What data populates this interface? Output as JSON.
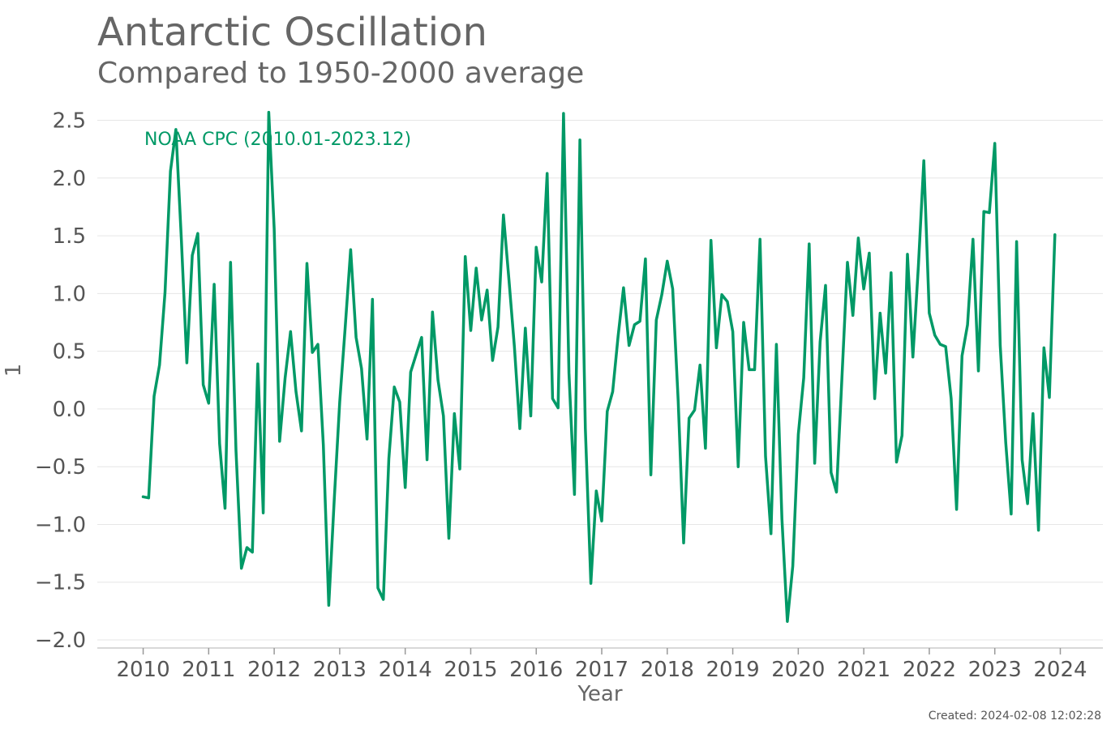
{
  "chart_data": {
    "type": "line",
    "title": "Antarctic Oscillation",
    "subtitle": "Compared to 1950-2000 average",
    "xlabel": "Year",
    "ylabel": "1",
    "xlim": [
      2009.3,
      2024.65
    ],
    "ylim": [
      -2.07,
      2.63
    ],
    "xticks": [
      2010,
      2011,
      2012,
      2013,
      2014,
      2015,
      2016,
      2017,
      2018,
      2019,
      2020,
      2021,
      2022,
      2023,
      2024
    ],
    "yticks": [
      -2.0,
      -1.5,
      -1.0,
      -0.5,
      0.0,
      0.5,
      1.0,
      1.5,
      2.0,
      2.5
    ],
    "ytick_labels": [
      "−2.0",
      "−1.5",
      "−1.0",
      "−0.5",
      "0.0",
      "0.5",
      "1.0",
      "1.5",
      "2.0",
      "2.5"
    ],
    "grid": true,
    "colors": {
      "series": "#009966",
      "grid": "#e6e6e6",
      "axis": "#cccccc"
    },
    "series": [
      {
        "name": "NOAA CPC (2010.01-2023.12)",
        "start": "2010.01",
        "end": "2023.12",
        "values": [
          -0.76,
          -0.77,
          0.11,
          0.38,
          1.01,
          2.06,
          2.42,
          1.46,
          0.4,
          1.33,
          1.52,
          0.21,
          0.05,
          1.08,
          -0.3,
          -0.86,
          1.27,
          -0.36,
          -1.38,
          -1.2,
          -1.24,
          0.39,
          -0.9,
          2.57,
          1.56,
          -0.28,
          0.27,
          0.67,
          0.15,
          -0.19,
          1.26,
          0.49,
          0.56,
          -0.31,
          -1.7,
          -0.78,
          0.06,
          0.7,
          1.38,
          0.62,
          0.35,
          -0.26,
          0.95,
          -1.55,
          -1.65,
          -0.43,
          0.19,
          0.06,
          -0.68,
          0.32,
          0.47,
          0.62,
          -0.44,
          0.84,
          0.25,
          -0.06,
          -1.12,
          -0.04,
          -0.52,
          1.32,
          0.68,
          1.22,
          0.77,
          1.03,
          0.42,
          0.71,
          1.68,
          1.12,
          0.54,
          -0.17,
          0.7,
          -0.06,
          1.4,
          1.1,
          2.04,
          0.09,
          0.01,
          2.56,
          0.31,
          -0.74,
          2.33,
          -0.17,
          -1.51,
          -0.71,
          -0.97,
          -0.02,
          0.15,
          0.63,
          1.05,
          0.55,
          0.73,
          0.76,
          1.3,
          -0.57,
          0.77,
          0.99,
          1.28,
          1.04,
          0.07,
          -1.16,
          -0.08,
          -0.01,
          0.38,
          -0.34,
          1.46,
          0.53,
          0.99,
          0.93,
          0.67,
          -0.5,
          0.75,
          0.34,
          0.34,
          1.47,
          -0.41,
          -1.08,
          0.56,
          -0.95,
          -1.84,
          -1.36,
          -0.22,
          0.27,
          1.43,
          -0.47,
          0.58,
          1.07,
          -0.55,
          -0.72,
          0.27,
          1.27,
          0.81,
          1.48,
          1.04,
          1.35,
          0.09,
          0.83,
          0.31,
          1.18,
          -0.46,
          -0.23,
          1.34,
          0.45,
          1.24,
          2.15,
          0.83,
          0.64,
          0.56,
          0.54,
          0.09,
          -0.87,
          0.46,
          0.73,
          1.47,
          0.33,
          1.71,
          1.7,
          2.3,
          0.55,
          -0.29,
          -0.91,
          1.45,
          -0.44,
          -0.82,
          -0.04,
          -1.05,
          0.53,
          0.1,
          1.51
        ]
      }
    ]
  },
  "footer": {
    "created": "Created: 2024-02-08 12:02:28"
  }
}
